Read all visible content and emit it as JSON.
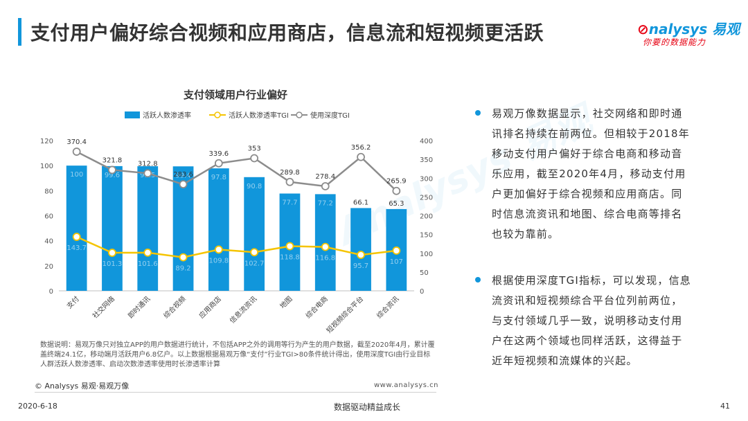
{
  "header": {
    "title": "支付用户偏好综合视频和应用商店，信息流和短视频更活跃",
    "logo_text": "nalysys 易观",
    "logo_mark": "⊘",
    "slogan": "你要的数据能力"
  },
  "colors": {
    "accent": "#1196db",
    "bar": "#1196db",
    "tgi_line": "#f5c400",
    "depth_line": "#8c8c8c",
    "logo_red": "#e60012"
  },
  "chart_data": {
    "type": "bar",
    "title": "支付领域用户行业偏好",
    "categories": [
      "支付",
      "社交网络",
      "即时通讯",
      "综合视频",
      "应用商店",
      "信息流资讯",
      "地图",
      "综合电商",
      "短视频综合平台",
      "综合资讯"
    ],
    "series": [
      {
        "name": "活跃人数渗透率",
        "kind": "bar",
        "axis": "left",
        "values": [
          100,
          99.6,
          99.5,
          99.4,
          97.8,
          90.8,
          77.7,
          77.2,
          66.1,
          65.3
        ],
        "labels": [
          "100",
          "99.6",
          "99.5",
          "99.4",
          "97.8",
          "90.8",
          "77.7",
          "77.2",
          "66.1",
          "65.3"
        ]
      },
      {
        "name": "活跃人数渗透率TGI",
        "kind": "line",
        "axis": "right",
        "values": [
          143.7,
          101.3,
          101.6,
          89.2,
          109.8,
          102.7,
          118.8,
          116.8,
          95.7,
          107
        ],
        "labels": [
          "143.7",
          "101.3",
          "101.6",
          "89.2",
          "109.8",
          "102.7",
          "118.8",
          "116.8",
          "95.7",
          "107"
        ]
      },
      {
        "name": "使用深度TGI",
        "kind": "line",
        "axis": "right",
        "values": [
          370.4,
          321.8,
          312.8,
          283.6,
          339.6,
          353,
          289.8,
          278.4,
          356.2,
          265.9
        ],
        "labels": [
          "370.4",
          "321.8",
          "312.8",
          "283.6",
          "339.6",
          "353",
          "289.8",
          "278.4",
          "356.2",
          "265.9"
        ]
      }
    ],
    "y_left": {
      "min": 0,
      "max": 120,
      "ticks": [
        "0",
        "20",
        "40",
        "60",
        "80",
        "100",
        "120"
      ]
    },
    "y_right": {
      "min": 0,
      "max": 400,
      "ticks": [
        "0",
        "50",
        "100",
        "150",
        "200",
        "250",
        "300",
        "350",
        "400"
      ]
    },
    "legend_position": "top",
    "grid": false
  },
  "note": "数据说明：易观万像只对独立APP的用户数据进行统计，不包括APP之外的调用等行为产生的用户数据，截至2020年4月，累计覆盖终端24.1亿，移动端月活跃用户6.8亿户。以上数据根据易观万像“支付”行业TGI>80条件统计得出，使用深度TGI由行业目标人群活跃人数渗透率、启动次数渗透率使用时长渗透率计算",
  "footer": {
    "copyright": "© Analysys 易观·易观万像",
    "url": "www.analysys.cn",
    "date": "2020-6-18",
    "center": "数据驱动精益成长",
    "page": "41"
  },
  "watermark": "Analysys 易观",
  "points": [
    "易观万像数据显示，社交网络和即时通讯排名持续在前两位。但相较于2018年移动支付用户偏好于综合电商和移动音乐应用，截至2020年4月，移动支付用户更加偏好于综合视频和应用商店。同时信息流资讯和地图、综合电商等排名也较为靠前。",
    "根据使用深度TGI指标，可以发现，信息流资讯和短视频综合平台位列前两位，与支付领域几乎一致，说明移动支付用户在这两个领域也同样活跃，这得益于近年短视频和流媒体的兴起。"
  ]
}
